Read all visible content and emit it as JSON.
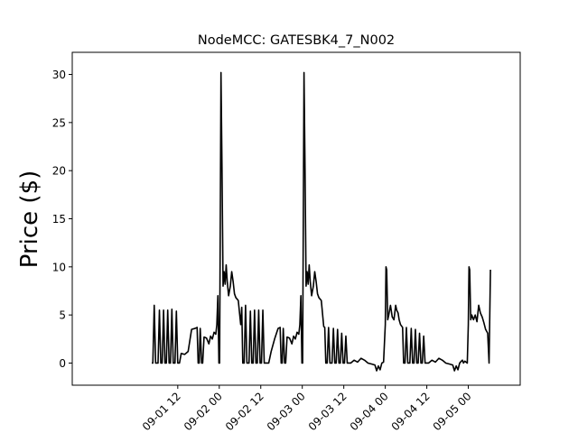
{
  "chart_data": {
    "type": "line",
    "title": "NodeMCC: GATESBK4_7_N002",
    "xlabel": "",
    "ylabel": "Price ($)",
    "ylim": [
      -2.3,
      32.3
    ],
    "xlim_hours": [
      -18.5,
      111
    ],
    "y_ticks": [
      0,
      5,
      10,
      15,
      20,
      25,
      30
    ],
    "x_ticks": [
      {
        "label": "09-01 12",
        "hour": 12
      },
      {
        "label": "09-02 00",
        "hour": 24
      },
      {
        "label": "09-02 12",
        "hour": 36
      },
      {
        "label": "09-03 00",
        "hour": 48
      },
      {
        "label": "09-03 12",
        "hour": 60
      },
      {
        "label": "09-04 00",
        "hour": 72
      },
      {
        "label": "09-04 12",
        "hour": 84
      },
      {
        "label": "09-05 00",
        "hour": 96
      }
    ],
    "x_origin_label": "09-01 00",
    "grid": false,
    "series": [
      {
        "name": "",
        "color": "#000000",
        "points": [
          [
            4.5,
            0
          ],
          [
            4.8,
            0
          ],
          [
            5.2,
            6
          ],
          [
            5.6,
            0
          ],
          [
            6.3,
            0
          ],
          [
            6.7,
            5.5
          ],
          [
            7.1,
            0
          ],
          [
            7.5,
            0
          ],
          [
            7.9,
            5.5
          ],
          [
            8.3,
            0
          ],
          [
            8.7,
            0
          ],
          [
            9.1,
            5.5
          ],
          [
            9.5,
            0
          ],
          [
            9.9,
            0
          ],
          [
            10.3,
            5.6
          ],
          [
            10.7,
            0
          ],
          [
            11.2,
            0
          ],
          [
            11.6,
            5.4
          ],
          [
            12,
            0
          ],
          [
            12.5,
            0
          ],
          [
            13,
            1
          ],
          [
            14,
            0.9
          ],
          [
            15,
            1.2
          ],
          [
            16,
            3.5
          ],
          [
            17,
            3.6
          ],
          [
            17.6,
            3.7
          ],
          [
            17.9,
            0
          ],
          [
            18.2,
            0
          ],
          [
            18.5,
            3.6
          ],
          [
            18.9,
            0
          ],
          [
            19.2,
            0
          ],
          [
            19.6,
            2.7
          ],
          [
            20.3,
            2.6
          ],
          [
            21,
            2
          ],
          [
            21.5,
            2.8
          ],
          [
            22,
            2.5
          ],
          [
            22.5,
            3.2
          ],
          [
            23,
            3
          ],
          [
            23.3,
            4
          ],
          [
            23.6,
            7
          ],
          [
            23.9,
            0
          ],
          [
            24.1,
            0
          ],
          [
            24.3,
            15
          ],
          [
            24.5,
            30.2
          ],
          [
            24.8,
            20
          ],
          [
            25.1,
            8
          ],
          [
            25.4,
            9.5
          ],
          [
            25.7,
            8.2
          ],
          [
            26,
            10.2
          ],
          [
            26.3,
            8.5
          ],
          [
            26.7,
            7
          ],
          [
            27.2,
            8
          ],
          [
            27.6,
            9.5
          ],
          [
            28,
            8.5
          ],
          [
            28.4,
            7.2
          ],
          [
            28.8,
            6.8
          ],
          [
            29.5,
            6.5
          ],
          [
            30.2,
            4
          ],
          [
            30.5,
            5.8
          ],
          [
            30.8,
            0
          ],
          [
            31.2,
            0
          ],
          [
            31.6,
            6
          ],
          [
            32,
            0
          ],
          [
            32.6,
            0
          ],
          [
            33,
            5.4
          ],
          [
            33.4,
            0
          ],
          [
            33.8,
            0
          ],
          [
            34.2,
            5.5
          ],
          [
            34.6,
            0
          ],
          [
            35,
            0
          ],
          [
            35.4,
            5.5
          ],
          [
            35.8,
            0
          ],
          [
            36.2,
            0
          ],
          [
            36.6,
            5.5
          ],
          [
            37,
            0
          ],
          [
            37.4,
            0
          ],
          [
            37.8,
            0
          ],
          [
            38.3,
            0
          ],
          [
            39,
            1.2
          ],
          [
            40,
            2.5
          ],
          [
            41,
            3.6
          ],
          [
            41.6,
            3.7
          ],
          [
            41.9,
            0
          ],
          [
            42.2,
            0
          ],
          [
            42.5,
            3.6
          ],
          [
            42.9,
            0
          ],
          [
            43.2,
            0
          ],
          [
            43.6,
            2.7
          ],
          [
            44.3,
            2.6
          ],
          [
            45,
            2
          ],
          [
            45.5,
            2.8
          ],
          [
            46,
            2.5
          ],
          [
            46.5,
            3.2
          ],
          [
            47,
            3
          ],
          [
            47.3,
            4
          ],
          [
            47.6,
            7
          ],
          [
            47.9,
            0
          ],
          [
            48.1,
            0
          ],
          [
            48.3,
            15
          ],
          [
            48.5,
            30.2
          ],
          [
            48.8,
            20
          ],
          [
            49.1,
            8
          ],
          [
            49.4,
            9.5
          ],
          [
            49.7,
            8.2
          ],
          [
            50,
            10.2
          ],
          [
            50.3,
            8.5
          ],
          [
            50.7,
            7
          ],
          [
            51.2,
            8
          ],
          [
            51.6,
            9.5
          ],
          [
            52,
            8.5
          ],
          [
            52.4,
            7.2
          ],
          [
            52.8,
            6.8
          ],
          [
            53.5,
            6.5
          ],
          [
            54.2,
            3.8
          ],
          [
            54.5,
            3.7
          ],
          [
            54.8,
            0
          ],
          [
            55.2,
            0
          ],
          [
            55.6,
            3.7
          ],
          [
            56,
            0
          ],
          [
            56.6,
            0
          ],
          [
            57,
            3.6
          ],
          [
            57.4,
            0
          ],
          [
            57.8,
            0
          ],
          [
            58.2,
            3.5
          ],
          [
            58.6,
            0
          ],
          [
            59,
            0
          ],
          [
            59.4,
            3.1
          ],
          [
            59.8,
            0
          ],
          [
            60.2,
            0
          ],
          [
            60.6,
            2.8
          ],
          [
            61,
            0
          ],
          [
            62,
            0
          ],
          [
            63,
            0.3
          ],
          [
            64,
            0.1
          ],
          [
            65,
            0.5
          ],
          [
            66,
            0.3
          ],
          [
            67,
            0
          ],
          [
            68,
            -0.1
          ],
          [
            69,
            -0.2
          ],
          [
            69.5,
            -0.8
          ],
          [
            70,
            -0.3
          ],
          [
            70.5,
            -0.7
          ],
          [
            71,
            0
          ],
          [
            71.5,
            0.1
          ],
          [
            72,
            4
          ],
          [
            72.2,
            10
          ],
          [
            72.4,
            9.7
          ],
          [
            72.7,
            4.5
          ],
          [
            73,
            5
          ],
          [
            73.5,
            6
          ],
          [
            74,
            4.8
          ],
          [
            74.5,
            4.5
          ],
          [
            75,
            6
          ],
          [
            75.3,
            5.5
          ],
          [
            75.7,
            5.2
          ],
          [
            76,
            4.5
          ],
          [
            76.4,
            4
          ],
          [
            76.8,
            3.8
          ],
          [
            77,
            3.7
          ],
          [
            77.3,
            0
          ],
          [
            77.7,
            0
          ],
          [
            78.1,
            3.7
          ],
          [
            78.5,
            0
          ],
          [
            79.1,
            0
          ],
          [
            79.5,
            3.6
          ],
          [
            79.9,
            0
          ],
          [
            80.3,
            0
          ],
          [
            80.7,
            3.5
          ],
          [
            81.1,
            0
          ],
          [
            81.5,
            0
          ],
          [
            81.9,
            3.1
          ],
          [
            82.3,
            0
          ],
          [
            82.7,
            0
          ],
          [
            83.1,
            2.8
          ],
          [
            83.5,
            0
          ],
          [
            84.5,
            0
          ],
          [
            85.5,
            0.3
          ],
          [
            86.5,
            0.1
          ],
          [
            87.5,
            0.5
          ],
          [
            88.5,
            0.3
          ],
          [
            89.5,
            0
          ],
          [
            90.5,
            -0.1
          ],
          [
            91.5,
            -0.2
          ],
          [
            92,
            -0.8
          ],
          [
            92.5,
            -0.3
          ],
          [
            93,
            -0.7
          ],
          [
            93.5,
            0
          ],
          [
            94,
            0.2
          ],
          [
            94.3,
            0.3
          ],
          [
            94.6,
            0
          ],
          [
            95,
            0.2
          ],
          [
            95.7,
            0
          ],
          [
            96,
            4
          ],
          [
            96.2,
            10
          ],
          [
            96.4,
            9.7
          ],
          [
            96.7,
            4.5
          ],
          [
            97,
            5
          ],
          [
            97.5,
            4.5
          ],
          [
            98,
            5
          ],
          [
            98.5,
            4.3
          ],
          [
            99,
            6
          ],
          [
            99.5,
            5.2
          ],
          [
            100,
            4.8
          ],
          [
            100.5,
            4.2
          ],
          [
            101,
            3.5
          ],
          [
            101.6,
            3.1
          ],
          [
            102,
            0
          ],
          [
            102.4,
            9.7
          ]
        ]
      }
    ]
  }
}
